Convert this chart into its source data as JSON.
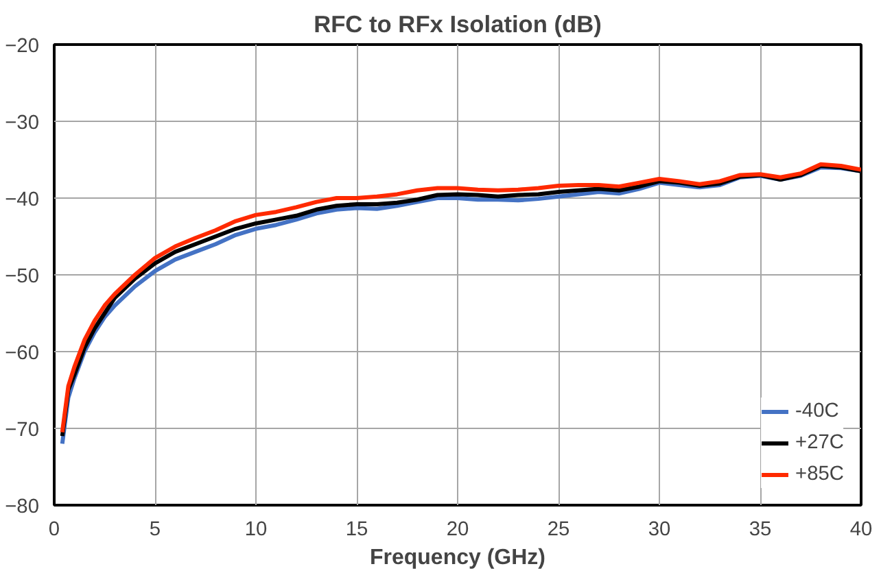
{
  "chart_data": {
    "type": "line",
    "title": "RFC to RFx Isolation (dB)",
    "xlabel": "Frequency (GHz)",
    "x": [
      0.4,
      0.7,
      1,
      1.5,
      2,
      2.5,
      3,
      4,
      5,
      6,
      7,
      8,
      9,
      10,
      11,
      12,
      13,
      14,
      15,
      16,
      17,
      18,
      19,
      20,
      21,
      22,
      23,
      24,
      25,
      26,
      27,
      28,
      29,
      30,
      31,
      32,
      33,
      34,
      35,
      36,
      37,
      38,
      39,
      40
    ],
    "series": [
      {
        "name": "-40C",
        "color": "#4472c4",
        "values": [
          -72,
          -66,
          -63.5,
          -60,
          -57.5,
          -55.5,
          -54,
          -51.5,
          -49.5,
          -48,
          -47,
          -46,
          -44.8,
          -44,
          -43.5,
          -42.8,
          -42,
          -41.5,
          -41.3,
          -41.4,
          -41,
          -40.5,
          -40,
          -40,
          -40.2,
          -40.2,
          -40.3,
          -40.1,
          -39.8,
          -39.5,
          -39.2,
          -39.4,
          -38.8,
          -38,
          -38.3,
          -38.6,
          -38.3,
          -37.3,
          -37.1,
          -37.6,
          -37.1,
          -36,
          -36.1,
          -36.5
        ]
      },
      {
        "name": "+27C",
        "color": "#000000",
        "values": [
          -71,
          -65,
          -63,
          -59.5,
          -57,
          -55,
          -53,
          -50.5,
          -48.5,
          -47,
          -46,
          -45,
          -44,
          -43.3,
          -42.8,
          -42.3,
          -41.5,
          -41,
          -40.8,
          -40.8,
          -40.6,
          -40.2,
          -39.6,
          -39.5,
          -39.6,
          -39.8,
          -39.6,
          -39.5,
          -39.2,
          -39,
          -38.8,
          -39,
          -38.5,
          -37.8,
          -38,
          -38.4,
          -38.1,
          -37.2,
          -37,
          -37.6,
          -37,
          -35.8,
          -36,
          -36.5
        ]
      },
      {
        "name": "+85C",
        "color": "#ff2a00",
        "values": [
          -70.5,
          -64.5,
          -62,
          -58.5,
          -56,
          -54,
          -52.5,
          -50,
          -47.8,
          -46.3,
          -45.2,
          -44.2,
          -43,
          -42.2,
          -41.8,
          -41.2,
          -40.5,
          -40,
          -40,
          -39.8,
          -39.5,
          -39,
          -38.7,
          -38.7,
          -38.9,
          -39,
          -38.9,
          -38.7,
          -38.4,
          -38.3,
          -38.3,
          -38.5,
          -38,
          -37.5,
          -37.8,
          -38.2,
          -37.8,
          -37,
          -36.9,
          -37.3,
          -36.8,
          -35.6,
          -35.8,
          -36.3
        ]
      }
    ],
    "xlim": [
      0,
      40
    ],
    "xticks": [
      0,
      5,
      10,
      15,
      20,
      25,
      30,
      35,
      40
    ],
    "ylim": [
      -80,
      -20
    ],
    "yticks": [
      -80,
      -70,
      -60,
      -50,
      -40,
      -30,
      -20
    ],
    "grid": true,
    "legend": "bottom right",
    "line_style": "solid",
    "marker": "none"
  }
}
